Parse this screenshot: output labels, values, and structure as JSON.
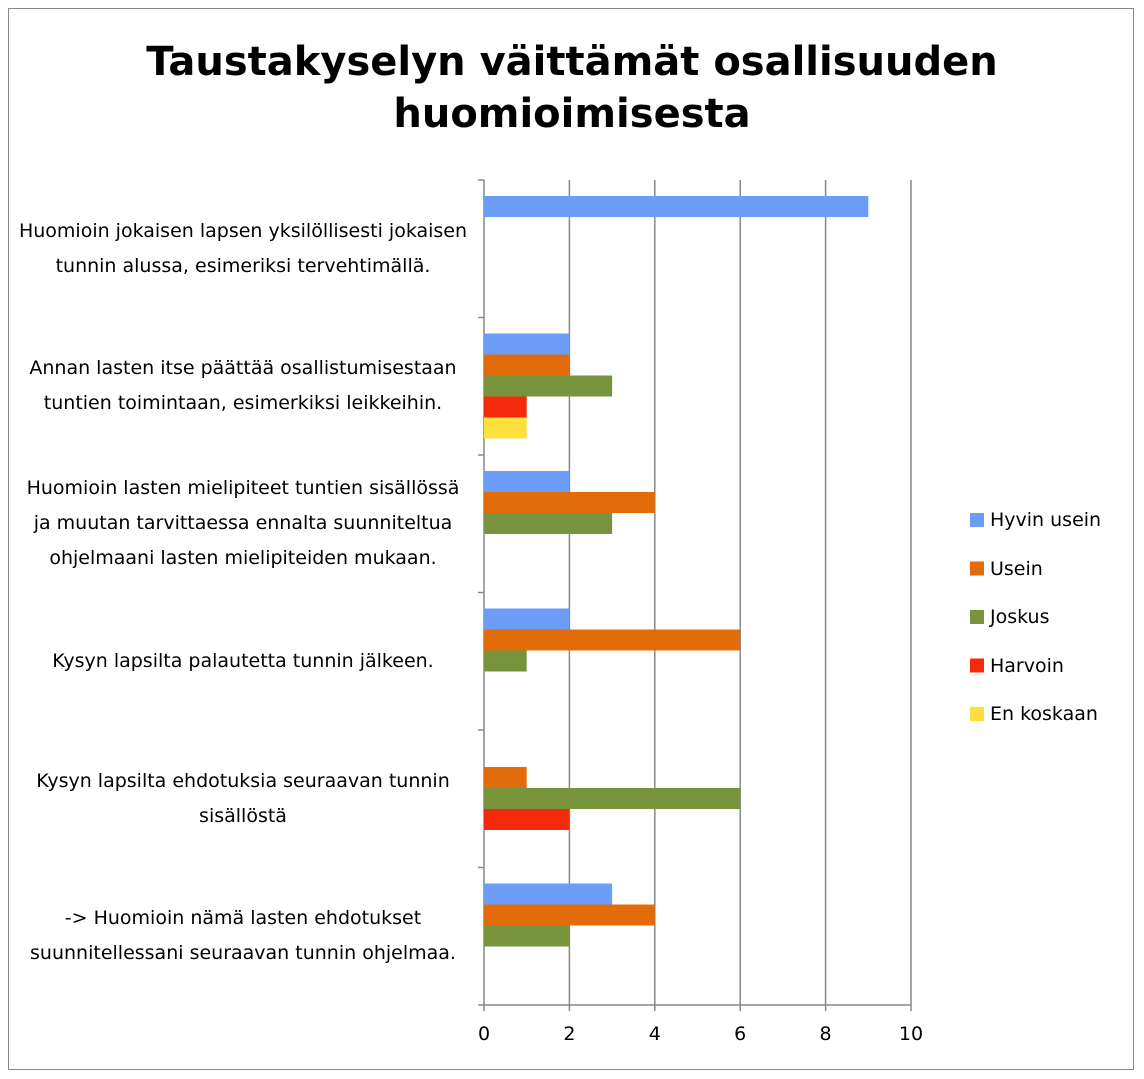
{
  "chart_data": {
    "type": "bar",
    "orientation": "horizontal",
    "title": "Taustakyselyn väittämät osallisuuden huomioimisesta",
    "categories": [
      "Huomioin jokaisen lapsen yksilöllisesti jokaisen tunnin alussa, esimeriksi tervehtimällä.",
      "Annan lasten itse päättää osallistumisestaan tuntien toimintaan, esimerkiksi leikkeihin.",
      "Huomioin lasten mielipiteet tuntien sisällössä ja muutan tarvittaessa ennalta suunniteltua ohjelmaani lasten mielipiteiden mukaan.",
      "Kysyn lapsilta palautetta tunnin jälkeen.",
      "Kysyn lapsilta ehdotuksia seuraavan tunnin sisällöstä",
      "-> Huomioin nämä lasten ehdotukset suunnitellessani seuraavan tunnin ohjelmaa."
    ],
    "series": [
      {
        "name": "Hyvin usein",
        "color": "#6b9cf8",
        "values": [
          9,
          2,
          2,
          2,
          0,
          3
        ]
      },
      {
        "name": "Usein",
        "color": "#e36c0a",
        "values": [
          0,
          2,
          4,
          6,
          1,
          4
        ]
      },
      {
        "name": "Joskus",
        "color": "#77933c",
        "values": [
          0,
          3,
          3,
          1,
          6,
          2
        ]
      },
      {
        "name": "Harvoin",
        "color": "#f42a0c",
        "values": [
          0,
          1,
          0,
          0,
          2,
          0
        ]
      },
      {
        "name": "En koskaan",
        "color": "#ffdf3c",
        "values": [
          0,
          1,
          0,
          0,
          0,
          0
        ]
      }
    ],
    "xlim": [
      0,
      10
    ],
    "xticks": [
      0,
      2,
      4,
      6,
      8,
      10
    ],
    "grid": true,
    "legend": "right"
  }
}
